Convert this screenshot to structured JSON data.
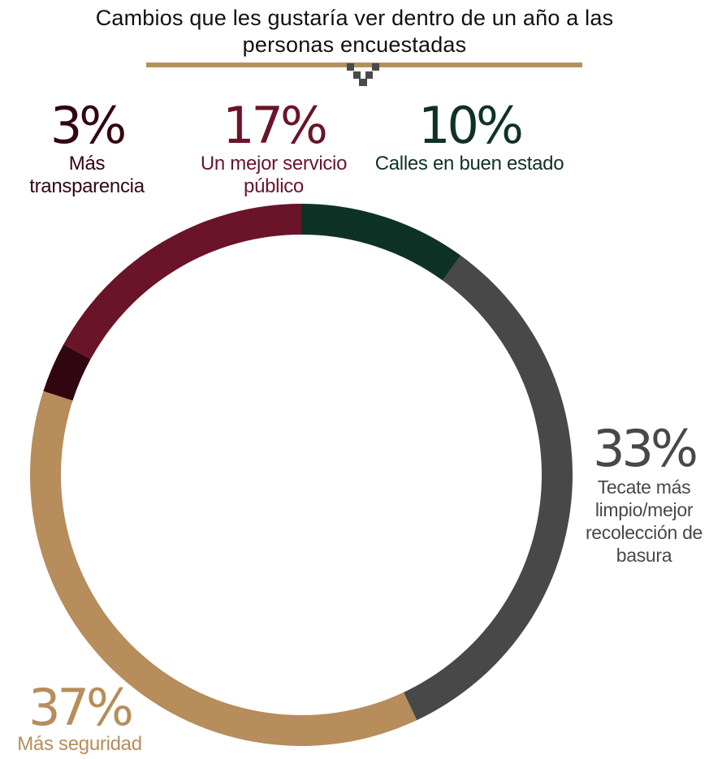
{
  "title": "Cambios que les gustaría ver dentro de un año a las personas encuestadas",
  "colors": {
    "rule": "#b5905d",
    "ornament": "#4a4a4a"
  },
  "chart_data": {
    "type": "pie",
    "title": "Cambios que les gustaría ver dentro de un año a las personas encuestadas",
    "donut": true,
    "start_angle_deg": 0,
    "direction": "clockwise",
    "slices": [
      {
        "label": "Calles en buen estado",
        "value": 10,
        "pct_label": "10%",
        "color": "#0f3226"
      },
      {
        "label": "Tecate más limpio/mejor recolección de basura",
        "value": 33,
        "pct_label": "33%",
        "color": "#484848"
      },
      {
        "label": "Más seguridad",
        "value": 37,
        "pct_label": "37%",
        "color": "#b68d5b"
      },
      {
        "label": "Más transparencia",
        "value": 3,
        "pct_label": "3%",
        "color": "#320610"
      },
      {
        "label": "Un mejor servicio público",
        "value": 17,
        "pct_label": "17%",
        "color": "#6a1429"
      }
    ]
  }
}
